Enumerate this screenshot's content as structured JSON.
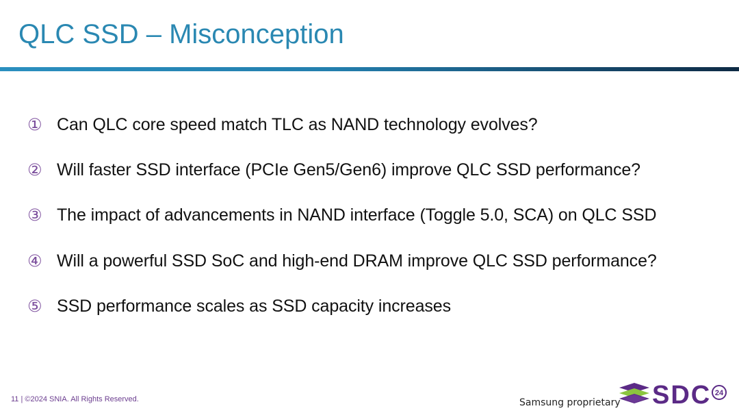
{
  "slide": {
    "title": "QLC SSD – Misconception",
    "items": [
      {
        "marker": "①",
        "text": "Can QLC core speed match TLC as NAND technology evolves?"
      },
      {
        "marker": "②",
        "text": "Will faster SSD interface (PCIe Gen5/Gen6) improve QLC SSD performance?"
      },
      {
        "marker": "③",
        "text": "The impact of advancements in NAND interface (Toggle 5.0, SCA) on QLC SSD"
      },
      {
        "marker": "④",
        "text": "Will a powerful SSD SoC and high-end DRAM improve QLC SSD performance?"
      },
      {
        "marker": "⑤",
        "text": "SSD performance scales as SSD capacity increases"
      }
    ]
  },
  "footer": {
    "copyright": "11 | ©2024 SNIA. All Rights Reserved.",
    "proprietary": "Samsung proprietary",
    "logo_text": "SDC",
    "logo_year": "24"
  },
  "colors": {
    "title": "#2a88b2",
    "marker": "#7b4d9c",
    "logo_green": "#8cc63f",
    "logo_purple": "#5b2a86"
  }
}
